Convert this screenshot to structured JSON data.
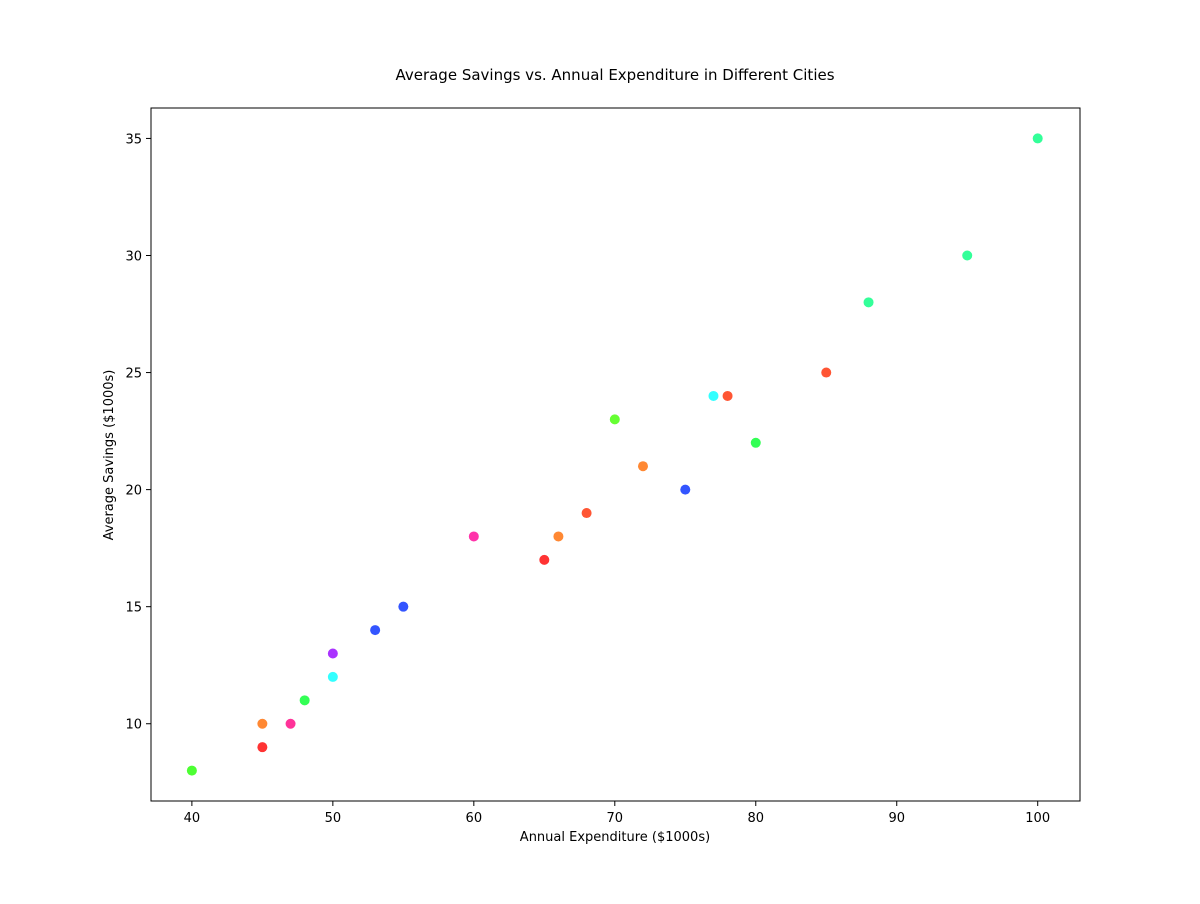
{
  "chart_data": {
    "type": "scatter",
    "title": "Average Savings vs. Annual Expenditure in Different Cities",
    "xlabel": "Annual Expenditure ($1000s)",
    "ylabel": "Average Savings ($1000s)",
    "xlim": [
      37.1,
      103.0
    ],
    "ylim": [
      6.7,
      36.3
    ],
    "xticks": [
      40,
      50,
      60,
      70,
      80,
      90,
      100
    ],
    "yticks": [
      10,
      15,
      20,
      25,
      30,
      35
    ],
    "grid": false,
    "points": [
      {
        "x": 40,
        "y": 8,
        "color": "#4dff33"
      },
      {
        "x": 45,
        "y": 9,
        "color": "#ff3333"
      },
      {
        "x": 45,
        "y": 10,
        "color": "#ff8833"
      },
      {
        "x": 47,
        "y": 10,
        "color": "#ff3399"
      },
      {
        "x": 48,
        "y": 11,
        "color": "#33ff55"
      },
      {
        "x": 50,
        "y": 12,
        "color": "#33ffff"
      },
      {
        "x": 50,
        "y": 13,
        "color": "#aa33ff"
      },
      {
        "x": 53,
        "y": 14,
        "color": "#3355ff"
      },
      {
        "x": 55,
        "y": 15,
        "color": "#3355ff"
      },
      {
        "x": 60,
        "y": 18,
        "color": "#ff33aa"
      },
      {
        "x": 65,
        "y": 17,
        "color": "#ff3333"
      },
      {
        "x": 66,
        "y": 18,
        "color": "#ff8833"
      },
      {
        "x": 68,
        "y": 19,
        "color": "#ff5533"
      },
      {
        "x": 70,
        "y": 23,
        "color": "#66ff33"
      },
      {
        "x": 72,
        "y": 21,
        "color": "#ff8833"
      },
      {
        "x": 75,
        "y": 20,
        "color": "#3355ff"
      },
      {
        "x": 77,
        "y": 24,
        "color": "#33ffff"
      },
      {
        "x": 78,
        "y": 24,
        "color": "#ff5533"
      },
      {
        "x": 80,
        "y": 22,
        "color": "#33ff55"
      },
      {
        "x": 85,
        "y": 25,
        "color": "#ff5533"
      },
      {
        "x": 88,
        "y": 28,
        "color": "#33ff99"
      },
      {
        "x": 95,
        "y": 30,
        "color": "#33ff99"
      },
      {
        "x": 100,
        "y": 35,
        "color": "#33ff99"
      }
    ]
  }
}
